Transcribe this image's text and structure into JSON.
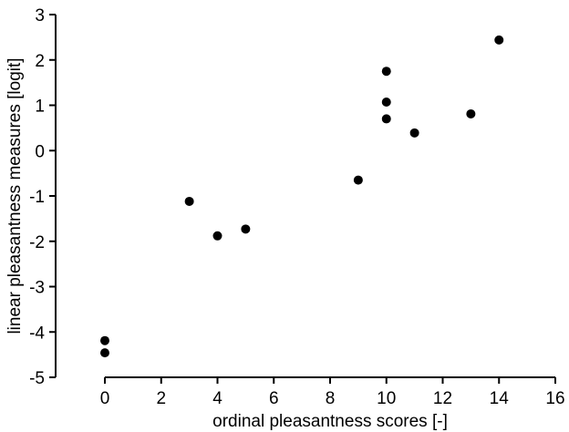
{
  "chart_data": {
    "type": "scatter",
    "title": "",
    "xlabel": "ordinal pleasantness scores [-]",
    "ylabel": "linear pleasantness measures [logit]",
    "xlim": [
      0,
      16
    ],
    "ylim": [
      -5,
      3
    ],
    "xticks": [
      "0",
      "2",
      "4",
      "6",
      "8",
      "10",
      "12",
      "14",
      "16"
    ],
    "yticks": [
      "3",
      "2",
      "1",
      "0",
      "-1",
      "-2",
      "-3",
      "-4",
      "-5"
    ],
    "grid": false,
    "series": [
      {
        "points": [
          {
            "x": 0,
            "y": -4.19
          },
          {
            "x": 0,
            "y": -4.46
          },
          {
            "x": 3,
            "y": -1.12
          },
          {
            "x": 4,
            "y": -1.88
          },
          {
            "x": 5,
            "y": -1.73
          },
          {
            "x": 9,
            "y": -0.65
          },
          {
            "x": 10,
            "y": 1.75
          },
          {
            "x": 10,
            "y": 1.07
          },
          {
            "x": 10,
            "y": 0.7
          },
          {
            "x": 11,
            "y": 0.39
          },
          {
            "x": 13,
            "y": 0.81
          },
          {
            "x": 14,
            "y": 2.44
          }
        ]
      }
    ]
  }
}
